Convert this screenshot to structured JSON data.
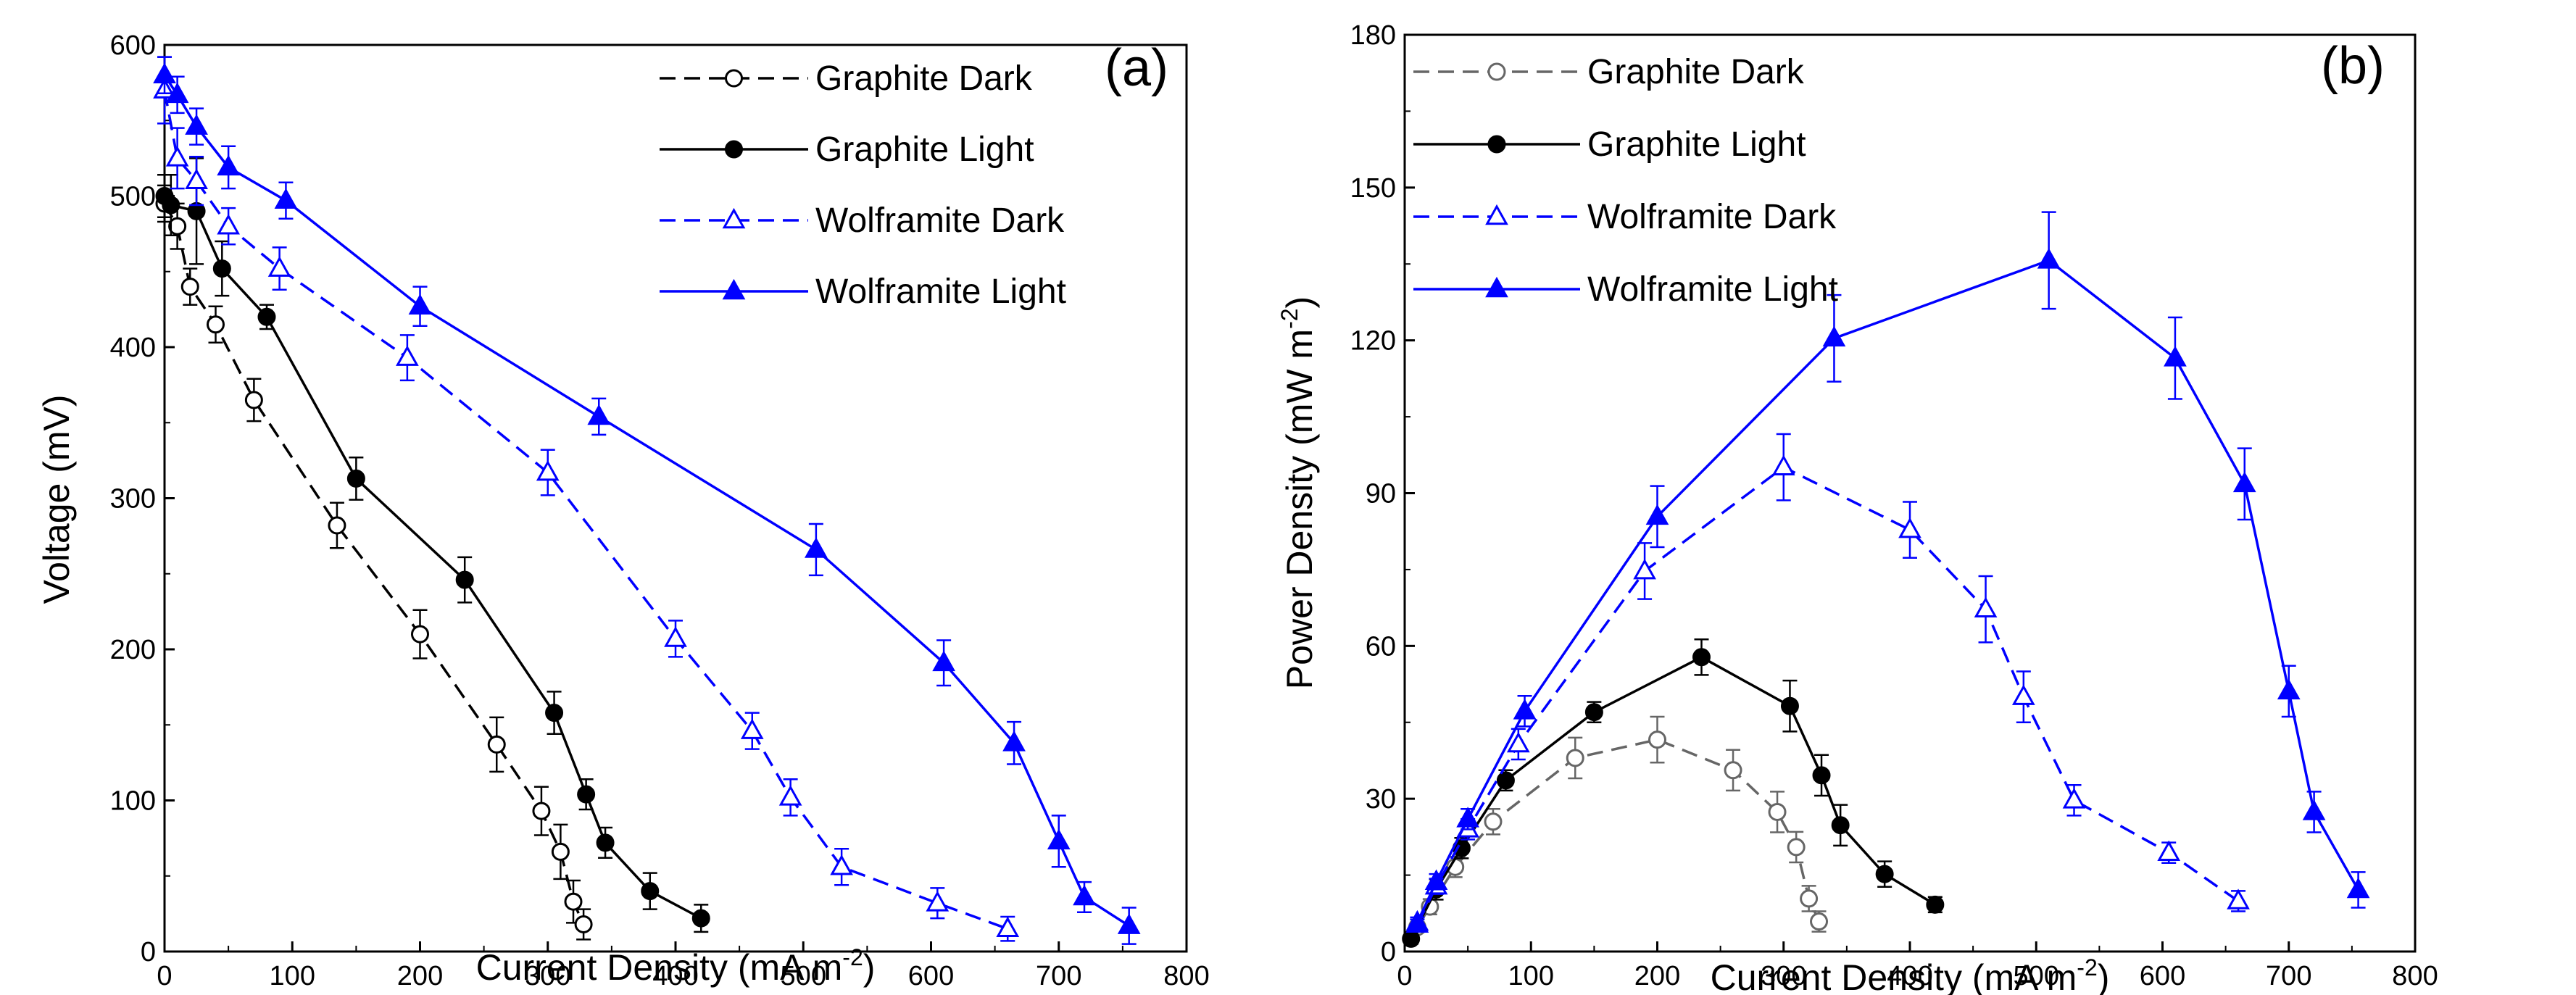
{
  "colors": {
    "black": "#000000",
    "blue": "#0000ff",
    "grey": "#666666"
  },
  "chart_data": [
    {
      "type": "line",
      "panel_label": "(a)",
      "title": "",
      "xlabel": "Current Density (mA m",
      "xlabel_sup": "-2",
      "xlabel_close": ")",
      "ylabel": "Voltage (mV)",
      "xlim": [
        0,
        800
      ],
      "ylim": [
        0,
        600
      ],
      "x_ticks": [
        0,
        100,
        200,
        300,
        400,
        500,
        600,
        700,
        800
      ],
      "y_ticks": [
        0,
        100,
        200,
        300,
        400,
        500,
        600
      ],
      "legend_position": "top-right",
      "series": [
        {
          "name": "Graphite Dark",
          "marker": "circle-open",
          "line": "dashed",
          "color": "#000000",
          "x": [
            0,
            10,
            20,
            40,
            70,
            135,
            200,
            260,
            295,
            310,
            320,
            328
          ],
          "y": [
            495,
            480,
            440,
            415,
            365,
            282,
            210,
            137,
            93,
            66,
            33,
            18
          ],
          "err": [
            12,
            15,
            12,
            12,
            14,
            15,
            16,
            18,
            16,
            18,
            14,
            10
          ]
        },
        {
          "name": "Graphite Light",
          "marker": "circle-filled",
          "line": "solid",
          "color": "#000000",
          "x": [
            0,
            5,
            25,
            45,
            80,
            150,
            235,
            305,
            330,
            345,
            380,
            420
          ],
          "y": [
            500,
            494,
            490,
            452,
            420,
            313,
            246,
            158,
            104,
            72,
            40,
            22
          ],
          "err": [
            14,
            20,
            35,
            18,
            8,
            14,
            15,
            14,
            10,
            10,
            12,
            9
          ]
        },
        {
          "name": "Wolframite Dark",
          "marker": "triangle-open",
          "line": "dashed",
          "color": "#0000ff",
          "x": [
            0,
            10,
            25,
            50,
            90,
            190,
            300,
            400,
            460,
            490,
            530,
            605,
            660
          ],
          "y": [
            570,
            525,
            510,
            480,
            452,
            393,
            317,
            207,
            146,
            102,
            56,
            32,
            15
          ],
          "err": [
            22,
            20,
            16,
            12,
            14,
            15,
            15,
            12,
            12,
            12,
            12,
            10,
            8
          ]
        },
        {
          "name": "Wolframite Light",
          "marker": "triangle-filled",
          "line": "solid",
          "color": "#0000ff",
          "x": [
            0,
            10,
            25,
            50,
            95,
            200,
            340,
            510,
            610,
            665,
            700,
            720,
            755
          ],
          "y": [
            580,
            567,
            546,
            519,
            497,
            427,
            354,
            266,
            191,
            138,
            73,
            36,
            17
          ],
          "err": [
            12,
            12,
            12,
            14,
            12,
            13,
            12,
            17,
            15,
            14,
            17,
            10,
            12
          ]
        }
      ]
    },
    {
      "type": "line",
      "panel_label": "(b)",
      "title": "",
      "xlabel": "Current Density (mA m",
      "xlabel_sup": "-2",
      "xlabel_close": ")",
      "ylabel": "Power Density (mW m",
      "ylabel_sup": "-2",
      "ylabel_close": ")",
      "xlim": [
        0,
        800
      ],
      "ylim": [
        0,
        180
      ],
      "x_ticks": [
        0,
        100,
        200,
        300,
        400,
        500,
        600,
        700,
        800
      ],
      "y_ticks": [
        0,
        30,
        60,
        90,
        120,
        150,
        180
      ],
      "legend_position": "top-left",
      "series": [
        {
          "name": "Graphite Dark",
          "marker": "circle-open",
          "line": "dashed",
          "color": "#666666",
          "x": [
            10,
            20,
            40,
            70,
            135,
            200,
            260,
            295,
            310,
            320,
            328
          ],
          "y": [
            4.8,
            8.8,
            16.6,
            25.5,
            38,
            41.6,
            35.6,
            27.4,
            20.5,
            10.4,
            5.9
          ],
          "err": [
            1,
            1.5,
            2,
            2.5,
            4,
            4.5,
            4,
            4,
            3,
            2.5,
            2
          ]
        },
        {
          "name": "Graphite Light",
          "marker": "circle-filled",
          "line": "solid",
          "color": "#000000",
          "x": [
            5,
            25,
            45,
            80,
            150,
            235,
            305,
            330,
            345,
            380,
            420
          ],
          "y": [
            2.5,
            12.2,
            20.3,
            33.6,
            47,
            57.8,
            48.2,
            34.6,
            24.8,
            15.2,
            9.2
          ],
          "err": [
            1,
            2,
            2,
            2,
            2,
            3.5,
            5,
            4,
            4,
            2.5,
            1.5
          ]
        },
        {
          "name": "Wolframite Dark",
          "marker": "triangle-open",
          "line": "dashed",
          "color": "#0000ff",
          "x": [
            10,
            25,
            50,
            90,
            190,
            300,
            400,
            460,
            490,
            530,
            605,
            660
          ],
          "y": [
            5.3,
            12.8,
            24,
            40.7,
            74.7,
            95.1,
            82.8,
            67.2,
            50,
            29.7,
            19.4,
            9.9
          ],
          "err": [
            1,
            1.5,
            2,
            3,
            5.5,
            6.5,
            5.5,
            6.5,
            5,
            3,
            2,
            2
          ]
        },
        {
          "name": "Wolframite Light",
          "marker": "triangle-filled",
          "line": "solid",
          "color": "#0000ff",
          "x": [
            10,
            25,
            50,
            95,
            200,
            340,
            510,
            610,
            665,
            700,
            720,
            755
          ],
          "y": [
            5.7,
            13.7,
            26,
            47.2,
            85.4,
            120.4,
            135.7,
            116.5,
            91.8,
            51.1,
            27.4,
            12.1
          ],
          "err": [
            1,
            1.5,
            2,
            3,
            6,
            8.5,
            9.5,
            8,
            7,
            5,
            4,
            3.5
          ]
        }
      ]
    }
  ]
}
